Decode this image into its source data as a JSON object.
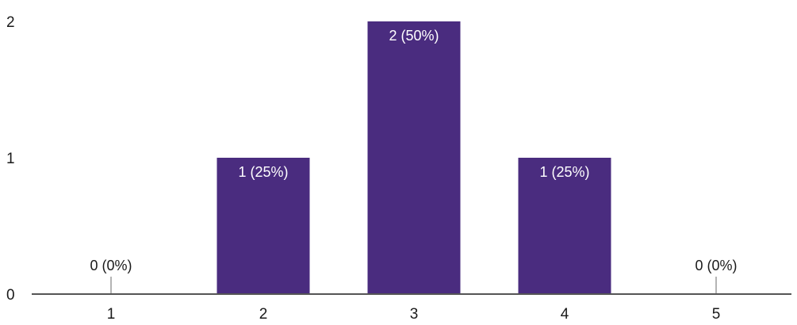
{
  "chart_data": {
    "type": "bar",
    "categories": [
      "1",
      "2",
      "3",
      "4",
      "5"
    ],
    "values": [
      0,
      1,
      2,
      1,
      0
    ],
    "data_labels": [
      "0 (0%)",
      "1 (25%)",
      "2 (50%)",
      "1 (25%)",
      "0 (0%)"
    ],
    "y_ticks": [
      "0",
      "1",
      "2"
    ],
    "ylim": [
      0,
      2
    ],
    "grid": false,
    "bar_color": "#4a2c7f",
    "inside_label_color": "#ffffff",
    "outside_label_color": "#1a1a1a",
    "axis_color": "#555555"
  }
}
